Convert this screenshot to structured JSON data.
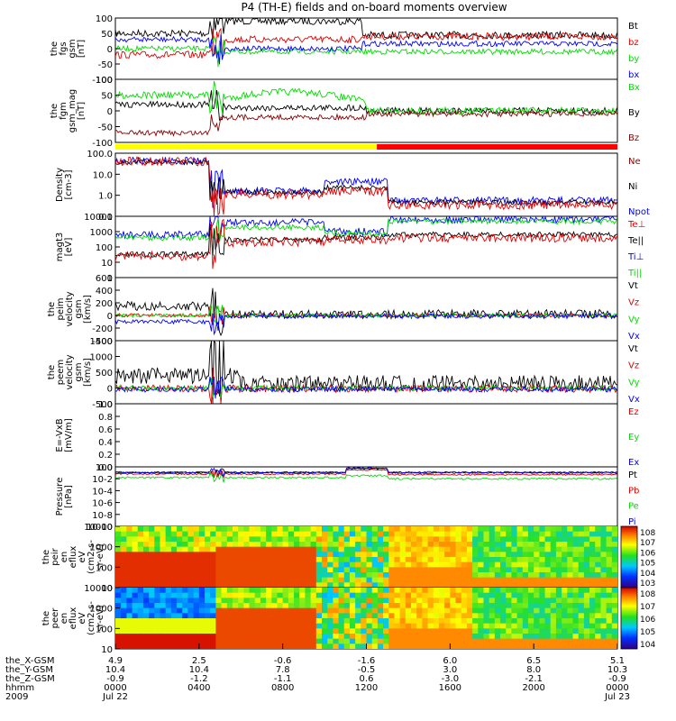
{
  "chart_data": {
    "type": "line",
    "title": "P4 (TH-E) fields and on-board moments overview",
    "colors": {
      "black": "#000000",
      "red": "#e00000",
      "darkred": "#8b0000",
      "green": "#00dd00",
      "blue": "#0000ff",
      "yellow": "#ffff00",
      "brightred": "#ff0000"
    },
    "panels": [
      {
        "id": "fgs",
        "ylabel": [
          "the",
          "fgs",
          "gsm",
          "[nT]"
        ],
        "yticks": [
          "100",
          "50",
          "0",
          "-50",
          "-100"
        ],
        "ylim": [
          -100,
          100
        ],
        "legend": [
          {
            "name": "Bt",
            "color": "black"
          },
          {
            "name": "bz",
            "color": "red"
          },
          {
            "name": "by",
            "color": "green"
          },
          {
            "name": "bx",
            "color": "blue"
          }
        ]
      },
      {
        "id": "fgm",
        "ylabel": [
          "the",
          "fgm",
          "gsm_mag",
          "[nT]"
        ],
        "yticks": [
          "100",
          "50",
          "0",
          "-50",
          "-100"
        ],
        "ylim": [
          -120,
          100
        ],
        "legend": [
          {
            "name": "Bx",
            "color": "green"
          },
          {
            "name": "By",
            "color": "black"
          },
          {
            "name": "Bz",
            "color": "darkred"
          }
        ]
      },
      {
        "id": "mode_bar",
        "bar": [
          {
            "from": 0,
            "to": 1250,
            "color": "yellow"
          },
          {
            "from": 1250,
            "to": 2400,
            "color": "brightred"
          }
        ]
      },
      {
        "id": "density",
        "ylabel": [
          "Density",
          "[cm-3]"
        ],
        "yticks": [
          "100.0",
          "10.0",
          "1.0",
          "0.1"
        ],
        "log": true,
        "legend": [
          {
            "name": "Ne",
            "color": "darkred"
          },
          {
            "name": "Ni",
            "color": "black"
          },
          {
            "name": "Npot",
            "color": "blue"
          }
        ]
      },
      {
        "id": "temperature",
        "ylabel": [
          "magt3",
          "[eV]"
        ],
        "yticks": [
          "10000",
          "1000",
          "100",
          "10",
          "1"
        ],
        "log": true,
        "legend": [
          {
            "name": "Te⊥",
            "color": "red"
          },
          {
            "name": "Te||",
            "color": "black"
          },
          {
            "name": "Ti⊥",
            "color": "blue"
          },
          {
            "name": "Ti||",
            "color": "green"
          }
        ]
      },
      {
        "id": "ion_velocity",
        "ylabel": [
          "the",
          "peim",
          "velocity",
          "gsm",
          "[km/s]"
        ],
        "yticks": [
          "600",
          "400",
          "200",
          "0",
          "-200",
          "-400"
        ],
        "ylim": [
          -400,
          600
        ],
        "legend": [
          {
            "name": "Vt",
            "color": "black"
          },
          {
            "name": "Vz",
            "color": "red"
          },
          {
            "name": "Vy",
            "color": "green"
          },
          {
            "name": "Vx",
            "color": "blue"
          }
        ]
      },
      {
        "id": "electron_velocity",
        "ylabel": [
          "the",
          "peem",
          "velocity",
          "gsm",
          "[km/s]"
        ],
        "yticks": [
          "1500",
          "1000",
          "500",
          "0",
          "-500"
        ],
        "ylim": [
          -500,
          1500
        ],
        "legend": [
          {
            "name": "Vt",
            "color": "black"
          },
          {
            "name": "Vz",
            "color": "red"
          },
          {
            "name": "Vy",
            "color": "green"
          },
          {
            "name": "Vx",
            "color": "blue"
          }
        ]
      },
      {
        "id": "efield",
        "ylabel": [
          "E=-VxB",
          "[mV/m]"
        ],
        "yticks": [
          "1.0",
          "0.8",
          "0.6",
          "0.4",
          "0.2",
          "0.0"
        ],
        "ylim": [
          0,
          1
        ],
        "legend": [
          {
            "name": "Ez",
            "color": "red"
          },
          {
            "name": "Ey",
            "color": "green"
          },
          {
            "name": "Ex",
            "color": "blue"
          }
        ]
      },
      {
        "id": "pressure",
        "ylabel": [
          "Pressure",
          "[nPa]"
        ],
        "yticks": [
          "10^0",
          "10^-2",
          "10^-4",
          "10^-6",
          "10^-8",
          "10^-10"
        ],
        "log": true,
        "legend": [
          {
            "name": "Pt",
            "color": "black"
          },
          {
            "name": "Pb",
            "color": "red"
          },
          {
            "name": "Pe",
            "color": "green"
          },
          {
            "name": "Pi",
            "color": "blue"
          }
        ]
      },
      {
        "id": "ion_spectrogram",
        "ylabel": [
          "the",
          "peir",
          "en",
          "eflux",
          "eV",
          "(cm^2-s-",
          "sr-eV)"
        ],
        "yticks": [
          "10000",
          "1000",
          "100",
          "10"
        ],
        "colorbar": [
          "10^8",
          "10^7",
          "10^6",
          "10^5",
          "10^4",
          "10^3"
        ]
      },
      {
        "id": "electron_spectrogram",
        "ylabel": [
          "the",
          "peer",
          "en",
          "eflux",
          "eV",
          "(cm^2-s-",
          "sr-eV)"
        ],
        "yticks": [
          "10000",
          "1000",
          "100",
          "10"
        ],
        "colorbar": [
          "10^8",
          "10^7",
          "10^6",
          "10^5",
          "10^4"
        ]
      }
    ],
    "x_axis": {
      "row_labels": [
        "the_X-GSM",
        "the_Y-GSM",
        "the_Z-GSM",
        "hhmm",
        "2009"
      ],
      "ticks": [
        {
          "x": 0,
          "vals": [
            "4.9",
            "10.4",
            "-0.9",
            "0000",
            "Jul 22"
          ]
        },
        {
          "x": 4,
          "vals": [
            "2.5",
            "10.4",
            "-1.2",
            "0400",
            ""
          ]
        },
        {
          "x": 8,
          "vals": [
            "-0.6",
            "7.8",
            "-1.1",
            "0800",
            ""
          ]
        },
        {
          "x": 12,
          "vals": [
            "-1.6",
            "-0.5",
            "0.6",
            "1200",
            ""
          ]
        },
        {
          "x": 16,
          "vals": [
            "6.0",
            "3.0",
            "-3.0",
            "1600",
            ""
          ]
        },
        {
          "x": 20,
          "vals": [
            "6.5",
            "8.0",
            "-2.1",
            "2000",
            ""
          ]
        },
        {
          "x": 24,
          "vals": [
            "5.1",
            "10.3",
            "-0.9",
            "0000",
            "Jul 23"
          ]
        }
      ]
    }
  }
}
